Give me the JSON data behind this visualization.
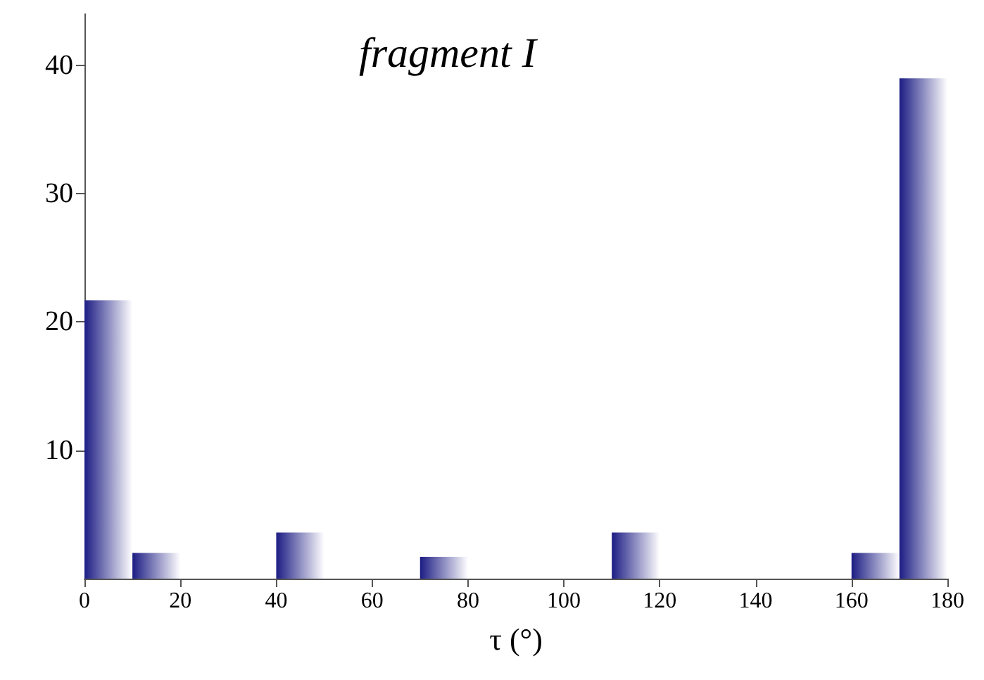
{
  "chart_data": {
    "type": "histogram",
    "title": "fragment I",
    "xlabel": "τ (°)",
    "bins": [
      0,
      10,
      20,
      30,
      40,
      50,
      60,
      70,
      80,
      90,
      100,
      110,
      120,
      130,
      140,
      150,
      160,
      170,
      180
    ],
    "values": [
      21.7,
      2,
      0,
      0,
      3.6,
      0,
      0,
      1.7,
      0,
      0,
      0,
      3.6,
      0,
      0,
      0,
      0,
      2,
      39
    ],
    "color": "#1c1c84",
    "xlim": [
      0,
      180
    ],
    "xticks": [
      0,
      20,
      40,
      60,
      80,
      100,
      120,
      140,
      160,
      180
    ],
    "ylim": [
      0,
      44
    ],
    "yticks": [
      10,
      20,
      30,
      40
    ],
    "grid": false
  }
}
